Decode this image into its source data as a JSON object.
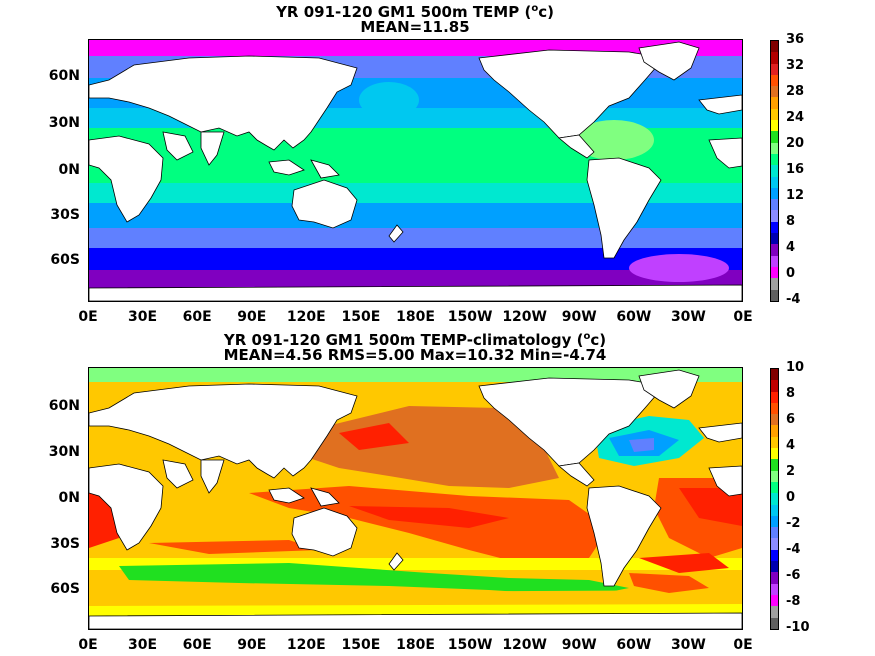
{
  "maps": [
    {
      "title_prefix": "YR 091-120 GM1 500m TEMP (",
      "title_unit_sup": "o",
      "title_unit_rest": "c)",
      "subtitle": "MEAN=11.85",
      "lat_labels": [
        "60N",
        "30N",
        "0N",
        "30S",
        "60S"
      ],
      "lon_labels": [
        "0E",
        "30E",
        "60E",
        "90E",
        "120E",
        "150E",
        "180E",
        "150W",
        "120W",
        "90W",
        "60W",
        "30W",
        "0E"
      ],
      "colorbar_labels": [
        "36",
        "32",
        "28",
        "24",
        "20",
        "16",
        "12",
        "8",
        "4",
        "0",
        "-4"
      ],
      "colorbar_colors": [
        "#800000",
        "#b40000",
        "#e02020",
        "#ff5000",
        "#e07020",
        "#ffa000",
        "#ffc800",
        "#ffff00",
        "#20e020",
        "#80ff80",
        "#00ff80",
        "#00e8d0",
        "#00c8f0",
        "#00a0ff",
        "#6080ff",
        "#8c8cff",
        "#0000ff",
        "#0000b0",
        "#8000c0",
        "#c040ff",
        "#ff00ff",
        "#a0a0a0",
        "#606060"
      ]
    },
    {
      "title_prefix": "YR 091-120 GM1 500m TEMP-climatology (",
      "title_unit_sup": "o",
      "title_unit_rest": "c)",
      "subtitle": "MEAN=4.56   RMS=5.00   Max=10.32   Min=-4.74",
      "lat_labels": [
        "60N",
        "30N",
        "0N",
        "30S",
        "60S"
      ],
      "lon_labels": [
        "0E",
        "30E",
        "60E",
        "90E",
        "120E",
        "150E",
        "180E",
        "150W",
        "120W",
        "90W",
        "60W",
        "30W",
        "0E"
      ],
      "colorbar_labels": [
        "10",
        "8",
        "6",
        "4",
        "2",
        "0",
        "-2",
        "-4",
        "-6",
        "-8",
        "-10"
      ],
      "colorbar_colors": [
        "#800000",
        "#c00000",
        "#ff2000",
        "#ff5000",
        "#e07020",
        "#ffa000",
        "#ffc800",
        "#ffff00",
        "#20e020",
        "#80ff80",
        "#00ff80",
        "#00e8d0",
        "#00c8f0",
        "#00a0ff",
        "#6080ff",
        "#8c8cff",
        "#0000ff",
        "#0000b0",
        "#8000c0",
        "#c040ff",
        "#ff00ff",
        "#a0a0a0",
        "#606060"
      ]
    }
  ]
}
